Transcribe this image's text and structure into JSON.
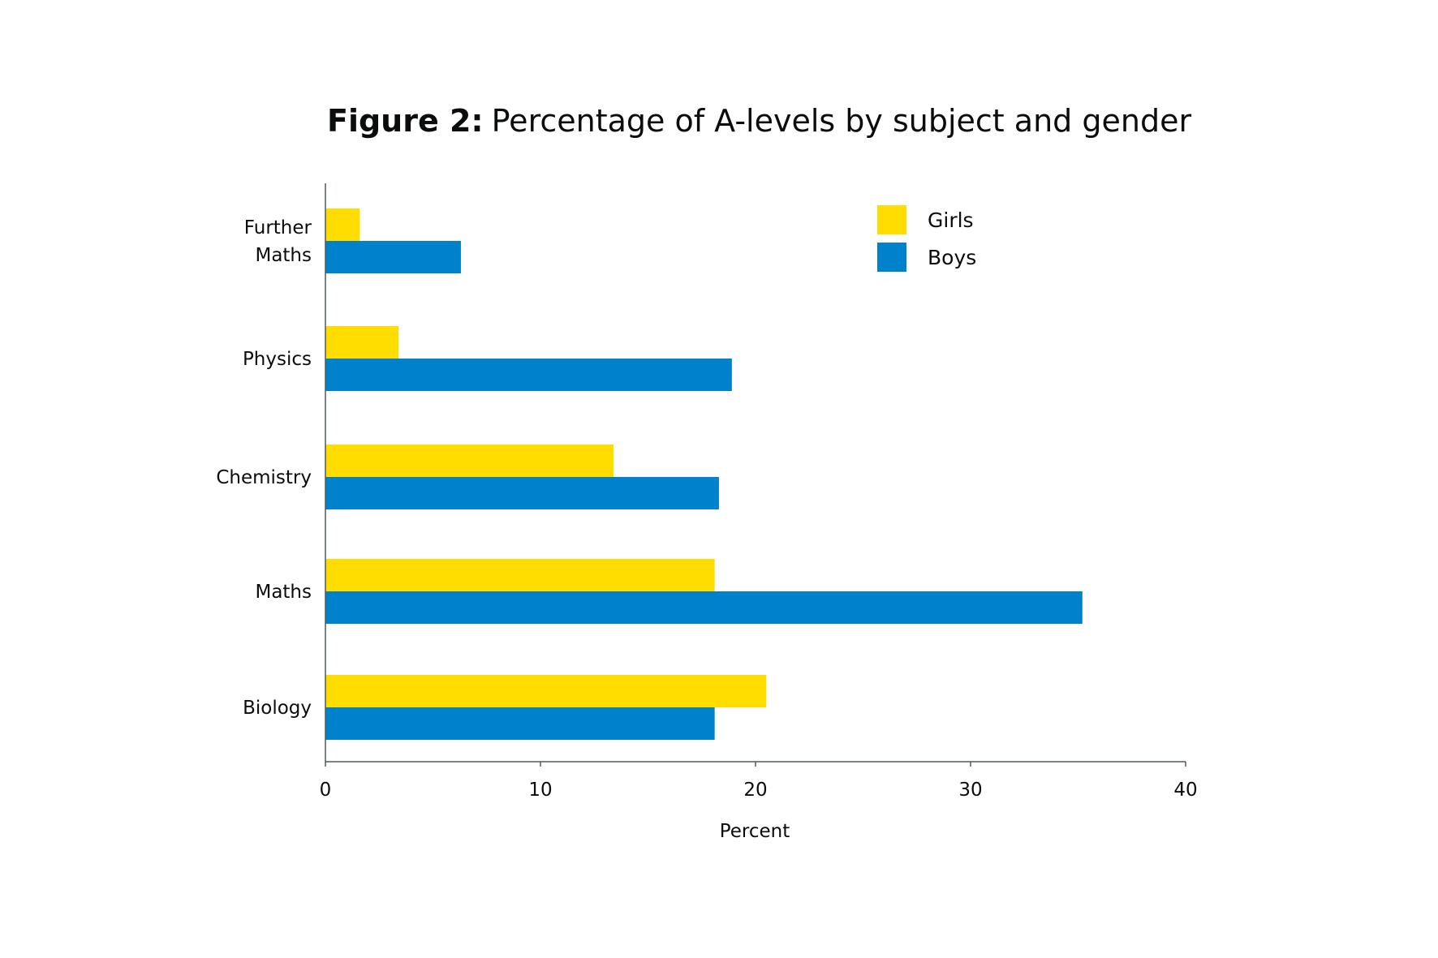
{
  "chart_data": {
    "type": "bar",
    "orientation": "horizontal",
    "title_prefix": "Figure 2:",
    "title": "Percentage of A-levels by subject and gender",
    "xlabel": "Percent",
    "ylabel": "",
    "xlim": [
      0,
      40
    ],
    "xticks": [
      0,
      10,
      20,
      30,
      40
    ],
    "grid": false,
    "legend_position": "top-right",
    "categories": [
      [
        "Further",
        "Maths"
      ],
      [
        "Physics"
      ],
      [
        "Chemistry"
      ],
      [
        "Maths"
      ],
      [
        "Biology"
      ]
    ],
    "series": [
      {
        "name": "Girls",
        "color": "#ffdd00",
        "values": [
          1.6,
          3.4,
          13.4,
          18.1,
          20.5
        ]
      },
      {
        "name": "Boys",
        "color": "#0081cb",
        "values": [
          6.3,
          18.9,
          18.3,
          35.2,
          18.1
        ]
      }
    ],
    "colors": {
      "text": "#0b0c0c",
      "axis": "#505a5f",
      "background": "#ffffff"
    }
  }
}
